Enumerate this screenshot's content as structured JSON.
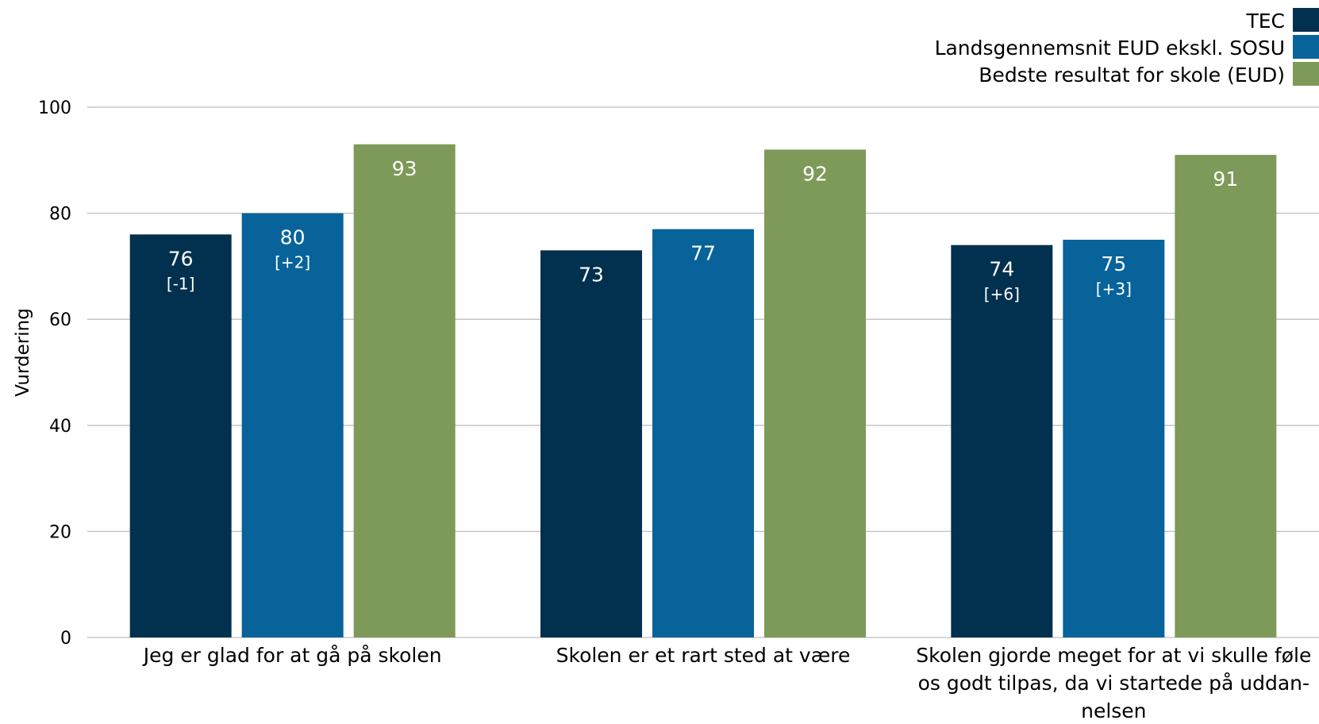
{
  "chart_data": {
    "type": "bar",
    "categories": [
      [
        "Jeg er glad for at gå på skolen"
      ],
      [
        "Skolen er et rart sted at være"
      ],
      [
        "Skolen gjorde meget for at vi skulle føle",
        "os godt tilpas, da vi startede på uddan-",
        "nelsen"
      ]
    ],
    "series": [
      {
        "name": "TEC",
        "color": "#02304f",
        "values": [
          76,
          73,
          74
        ],
        "deltas": [
          "[-1]",
          "",
          "[+6]"
        ]
      },
      {
        "name": "Landsgennemsnit EUD ekskl. SOSU",
        "color": "#07639a",
        "values": [
          80,
          77,
          75
        ],
        "deltas": [
          "[+2]",
          "",
          "[+3]"
        ]
      },
      {
        "name": "Bedste resultat for skole (EUD)",
        "color": "#7d9a58",
        "values": [
          93,
          92,
          91
        ],
        "deltas": [
          "",
          "",
          ""
        ]
      }
    ],
    "value_labels": [
      [
        "76",
        "73",
        "74"
      ],
      [
        "80",
        "77",
        "75"
      ],
      [
        "93",
        "92",
        "91"
      ]
    ],
    "ylabel": "Vurdering",
    "ylim": [
      0,
      100
    ],
    "yticks": [
      "0",
      "20",
      "40",
      "60",
      "80",
      "100"
    ],
    "grid": true,
    "legend_position": "top-right"
  }
}
